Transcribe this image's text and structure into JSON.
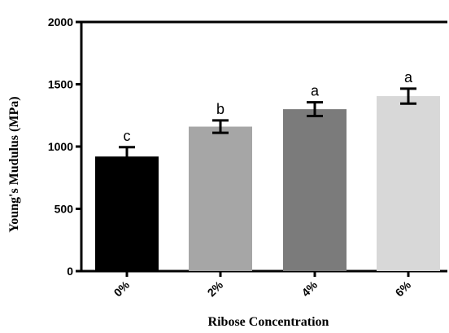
{
  "chart_data": {
    "type": "bar",
    "xlabel": "Ribose Concentration",
    "ylabel": "Young's Mudulus (MPa)",
    "categories": [
      "0%",
      "2%",
      "4%",
      "6%"
    ],
    "values": [
      920,
      1160,
      1300,
      1405
    ],
    "error": [
      75,
      50,
      55,
      60
    ],
    "significance": [
      "c",
      "b",
      "a",
      "a"
    ],
    "bar_colors": [
      "#000000",
      "#a6a6a6",
      "#7b7b7b",
      "#d8d8d8"
    ],
    "ylim": [
      0,
      2000
    ],
    "yticks": [
      "0",
      "500",
      "1000",
      "1500",
      "2000"
    ],
    "grid": false
  }
}
